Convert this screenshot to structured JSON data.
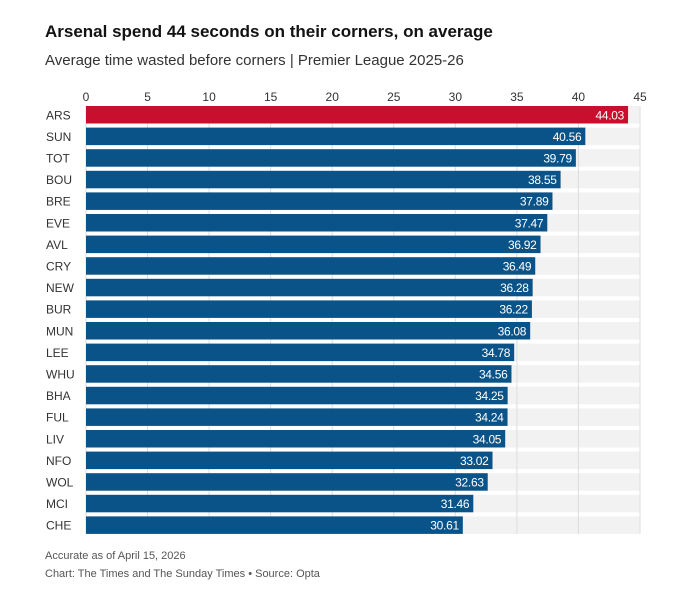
{
  "title": "Arsenal spend 44 seconds on their corners, on average",
  "subtitle": "Average time wasted before corners | Premier League 2025-26",
  "footer": {
    "note": "Accurate as of April 15, 2026",
    "credit": "Chart: The Times and The Sunday Times • Source: Opta"
  },
  "chart_data": {
    "type": "bar",
    "orientation": "horizontal",
    "title": "Arsenal spend 44 seconds on their corners, on average",
    "subtitle": "Average time wasted before corners | Premier League 2025-26",
    "xlabel": "",
    "ylabel": "",
    "xlim": [
      0,
      45
    ],
    "xticks": [
      0,
      5,
      10,
      15,
      20,
      25,
      30,
      35,
      40,
      45
    ],
    "tick_labels": [
      "0",
      "5",
      "10",
      "15",
      "20",
      "25",
      "30",
      "35",
      "40",
      "45"
    ],
    "x_axis_position": "top",
    "grid": true,
    "highlight_category": "ARS",
    "colors": {
      "highlight": "#c8102e",
      "default": "#0a5389",
      "background_band": "#f2f2f2",
      "grid": "#dddddd"
    },
    "categories": [
      "ARS",
      "SUN",
      "TOT",
      "BOU",
      "BRE",
      "EVE",
      "AVL",
      "CRY",
      "NEW",
      "BUR",
      "MUN",
      "LEE",
      "WHU",
      "BHA",
      "FUL",
      "LIV",
      "NFO",
      "WOL",
      "MCI",
      "CHE"
    ],
    "values": [
      44.03,
      40.56,
      39.79,
      38.55,
      37.89,
      37.47,
      36.92,
      36.49,
      36.28,
      36.22,
      36.08,
      34.78,
      34.56,
      34.25,
      34.24,
      34.05,
      33.02,
      32.63,
      31.46,
      30.61
    ],
    "value_labels": [
      "44.03",
      "40.56",
      "39.79",
      "38.55",
      "37.89",
      "37.47",
      "36.92",
      "36.49",
      "36.28",
      "36.22",
      "36.08",
      "34.78",
      "34.56",
      "34.25",
      "34.24",
      "34.05",
      "33.02",
      "32.63",
      "31.46",
      "30.61"
    ]
  }
}
